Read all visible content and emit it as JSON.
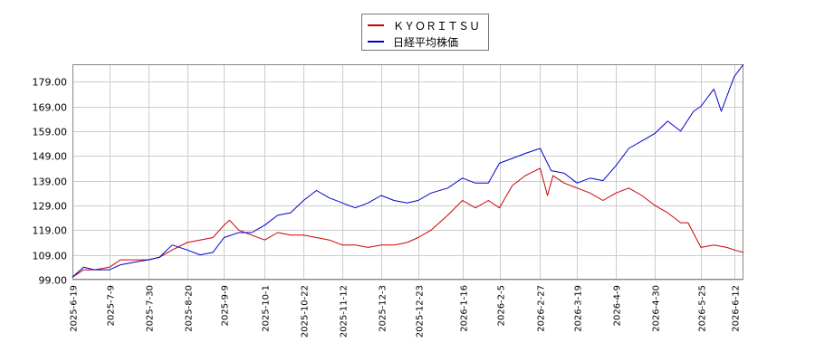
{
  "chart_data": {
    "type": "line",
    "legend_position": "top-center",
    "grid": true,
    "ylim": [
      99,
      186
    ],
    "y_ticks": [
      "99.00",
      "109.00",
      "119.00",
      "129.00",
      "139.00",
      "149.00",
      "159.00",
      "169.00",
      "179.00"
    ],
    "y_tick_values": [
      99,
      109,
      119,
      129,
      139,
      149,
      159,
      169,
      179
    ],
    "x_ticks": [
      "2025-6-19",
      "2025-7-9",
      "2025-7-30",
      "2025-8-20",
      "2025-9-9",
      "2025-10-1",
      "2025-10-22",
      "2025-11-12",
      "2025-12-3",
      "2025-12-23",
      "2026-1-16",
      "2026-2-5",
      "2026-2-27",
      "2026-3-19",
      "2026-4-9",
      "2026-4-30",
      "2026-5-25",
      "2026-6-12"
    ],
    "series": [
      {
        "name": "ＫＹＯＲＩＴＳＵ",
        "color": "#cc0000",
        "x": [
          "2025-6-19",
          "2025-6-25",
          "2025-7-1",
          "2025-7-9",
          "2025-7-15",
          "2025-7-22",
          "2025-7-30",
          "2025-8-5",
          "2025-8-12",
          "2025-8-20",
          "2025-8-27",
          "2025-9-3",
          "2025-9-9",
          "2025-9-12",
          "2025-9-17",
          "2025-9-24",
          "2025-10-1",
          "2025-10-8",
          "2025-10-15",
          "2025-10-22",
          "2025-10-29",
          "2025-11-5",
          "2025-11-12",
          "2025-11-19",
          "2025-11-26",
          "2025-12-3",
          "2025-12-10",
          "2025-12-17",
          "2025-12-23",
          "2025-12-30",
          "2026-1-8",
          "2026-1-16",
          "2026-1-23",
          "2026-1-30",
          "2026-2-5",
          "2026-2-12",
          "2026-2-19",
          "2026-2-27",
          "2026-3-3",
          "2026-3-6",
          "2026-3-12",
          "2026-3-19",
          "2026-3-26",
          "2026-4-2",
          "2026-4-9",
          "2026-4-16",
          "2026-4-23",
          "2026-4-30",
          "2026-5-7",
          "2026-5-14",
          "2026-5-18",
          "2026-5-25",
          "2026-6-1",
          "2026-6-8",
          "2026-6-12",
          "2026-6-17"
        ],
        "values": [
          100,
          103,
          103,
          104,
          107,
          107,
          107,
          108,
          111,
          114,
          115,
          116,
          121,
          123,
          119,
          117,
          115,
          118,
          117,
          117,
          116,
          115,
          113,
          113,
          112,
          113,
          113,
          114,
          116,
          119,
          125,
          131,
          128,
          131,
          128,
          137,
          141,
          144,
          133,
          141,
          138,
          136,
          134,
          131,
          134,
          136,
          133,
          129,
          126,
          122,
          122,
          112,
          113,
          112,
          111,
          110
        ]
      },
      {
        "name": "日経平均株価",
        "color": "#0000cc",
        "x": [
          "2025-6-19",
          "2025-6-25",
          "2025-7-1",
          "2025-7-9",
          "2025-7-15",
          "2025-7-22",
          "2025-7-30",
          "2025-8-5",
          "2025-8-12",
          "2025-8-20",
          "2025-8-27",
          "2025-9-3",
          "2025-9-9",
          "2025-9-17",
          "2025-9-24",
          "2025-10-1",
          "2025-10-8",
          "2025-10-15",
          "2025-10-22",
          "2025-10-29",
          "2025-11-5",
          "2025-11-12",
          "2025-11-19",
          "2025-11-26",
          "2025-12-3",
          "2025-12-10",
          "2025-12-17",
          "2025-12-23",
          "2025-12-30",
          "2026-1-8",
          "2026-1-16",
          "2026-1-23",
          "2026-1-30",
          "2026-2-5",
          "2026-2-12",
          "2026-2-19",
          "2026-2-27",
          "2026-3-5",
          "2026-3-12",
          "2026-3-19",
          "2026-3-26",
          "2026-4-2",
          "2026-4-9",
          "2026-4-16",
          "2026-4-23",
          "2026-4-30",
          "2026-5-7",
          "2026-5-14",
          "2026-5-21",
          "2026-5-25",
          "2026-6-1",
          "2026-6-5",
          "2026-6-12",
          "2026-6-17"
        ],
        "values": [
          100,
          104,
          103,
          103,
          105,
          106,
          107,
          108,
          113,
          111,
          109,
          110,
          116,
          118,
          118,
          121,
          125,
          126,
          131,
          135,
          132,
          130,
          128,
          130,
          133,
          131,
          130,
          131,
          134,
          136,
          140,
          138,
          138,
          146,
          148,
          150,
          152,
          143,
          142,
          138,
          140,
          139,
          145,
          152,
          155,
          158,
          163,
          159,
          167,
          169,
          176,
          167,
          181,
          186
        ]
      }
    ]
  }
}
